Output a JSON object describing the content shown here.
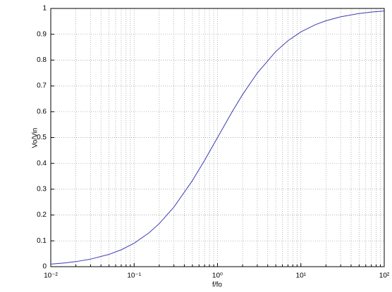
{
  "chart_data": {
    "type": "line",
    "xlabel": "f/fo",
    "ylabel": "Vo/Vin",
    "xscale": "log",
    "grid": true,
    "x": [
      0.01,
      0.015,
      0.02,
      0.03,
      0.05,
      0.07,
      0.1,
      0.15,
      0.2,
      0.3,
      0.5,
      0.7,
      1,
      1.5,
      2,
      3,
      5,
      7,
      10,
      15,
      20,
      30,
      50,
      70,
      100
    ],
    "series": [
      {
        "color": "#3b3bb3",
        "values": [
          0.0099,
          0.0148,
          0.0196,
          0.0291,
          0.0476,
          0.0654,
          0.0909,
          0.1304,
          0.1667,
          0.2308,
          0.3333,
          0.4118,
          0.5,
          0.6,
          0.6667,
          0.75,
          0.8333,
          0.875,
          0.9091,
          0.9375,
          0.9524,
          0.9677,
          0.9804,
          0.9859,
          0.9901
        ]
      }
    ],
    "xlim": [
      0.01,
      100
    ],
    "ylim": [
      0,
      1
    ],
    "xticks": [
      {
        "value": 0.01,
        "label": "10⁻²"
      },
      {
        "value": 0.1,
        "label": "10⁻¹"
      },
      {
        "value": 1,
        "label": "10⁰"
      },
      {
        "value": 10,
        "label": "10¹"
      },
      {
        "value": 100,
        "label": "10²"
      }
    ],
    "xminorticks": [
      0.02,
      0.03,
      0.04,
      0.05,
      0.06,
      0.07,
      0.08,
      0.09,
      0.2,
      0.3,
      0.4,
      0.5,
      0.6,
      0.7,
      0.8,
      0.9,
      2,
      3,
      4,
      5,
      6,
      7,
      8,
      9,
      20,
      30,
      40,
      50,
      60,
      70,
      80,
      90
    ],
    "yticks": [
      0,
      0.1,
      0.2,
      0.3,
      0.4,
      0.5,
      0.6,
      0.7,
      0.8,
      0.9,
      1
    ]
  }
}
